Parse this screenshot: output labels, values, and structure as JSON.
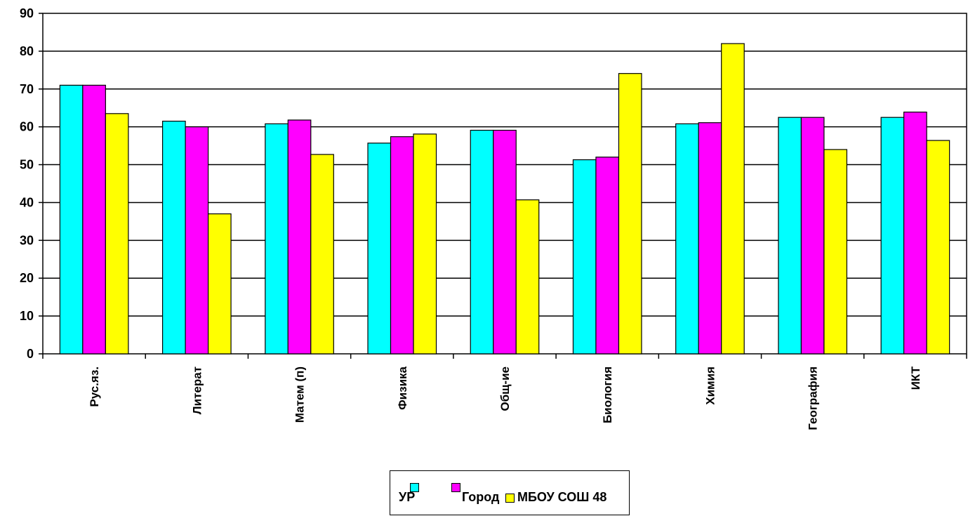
{
  "chart_data": {
    "type": "bar",
    "categories": [
      "Рус.яз.",
      "Литерат",
      "Матем (п)",
      "Физика",
      "Общ-ие",
      "Биология",
      "Химия",
      "География",
      "ИКТ"
    ],
    "series": [
      {
        "name": "УР",
        "color": "#00ffff",
        "values": [
          71,
          61.5,
          60.8,
          55.7,
          59.1,
          51.3,
          60.8,
          62.5,
          62.5
        ]
      },
      {
        "name": "Город",
        "color": "#ff00ff",
        "values": [
          71,
          60,
          61.8,
          57.4,
          59.1,
          52,
          61.1,
          62.5,
          63.9
        ]
      },
      {
        "name": "МБОУ СОШ 48",
        "color": "#ffff00",
        "values": [
          63.5,
          37,
          52.7,
          58.1,
          40.7,
          74.1,
          82,
          54,
          56.4
        ]
      }
    ],
    "ylim": [
      0,
      90
    ],
    "yticks": [
      "0",
      "10",
      "20",
      "30",
      "40",
      "50",
      "60",
      "70",
      "80",
      "90"
    ],
    "grid": true,
    "legend_position": "bottom"
  }
}
